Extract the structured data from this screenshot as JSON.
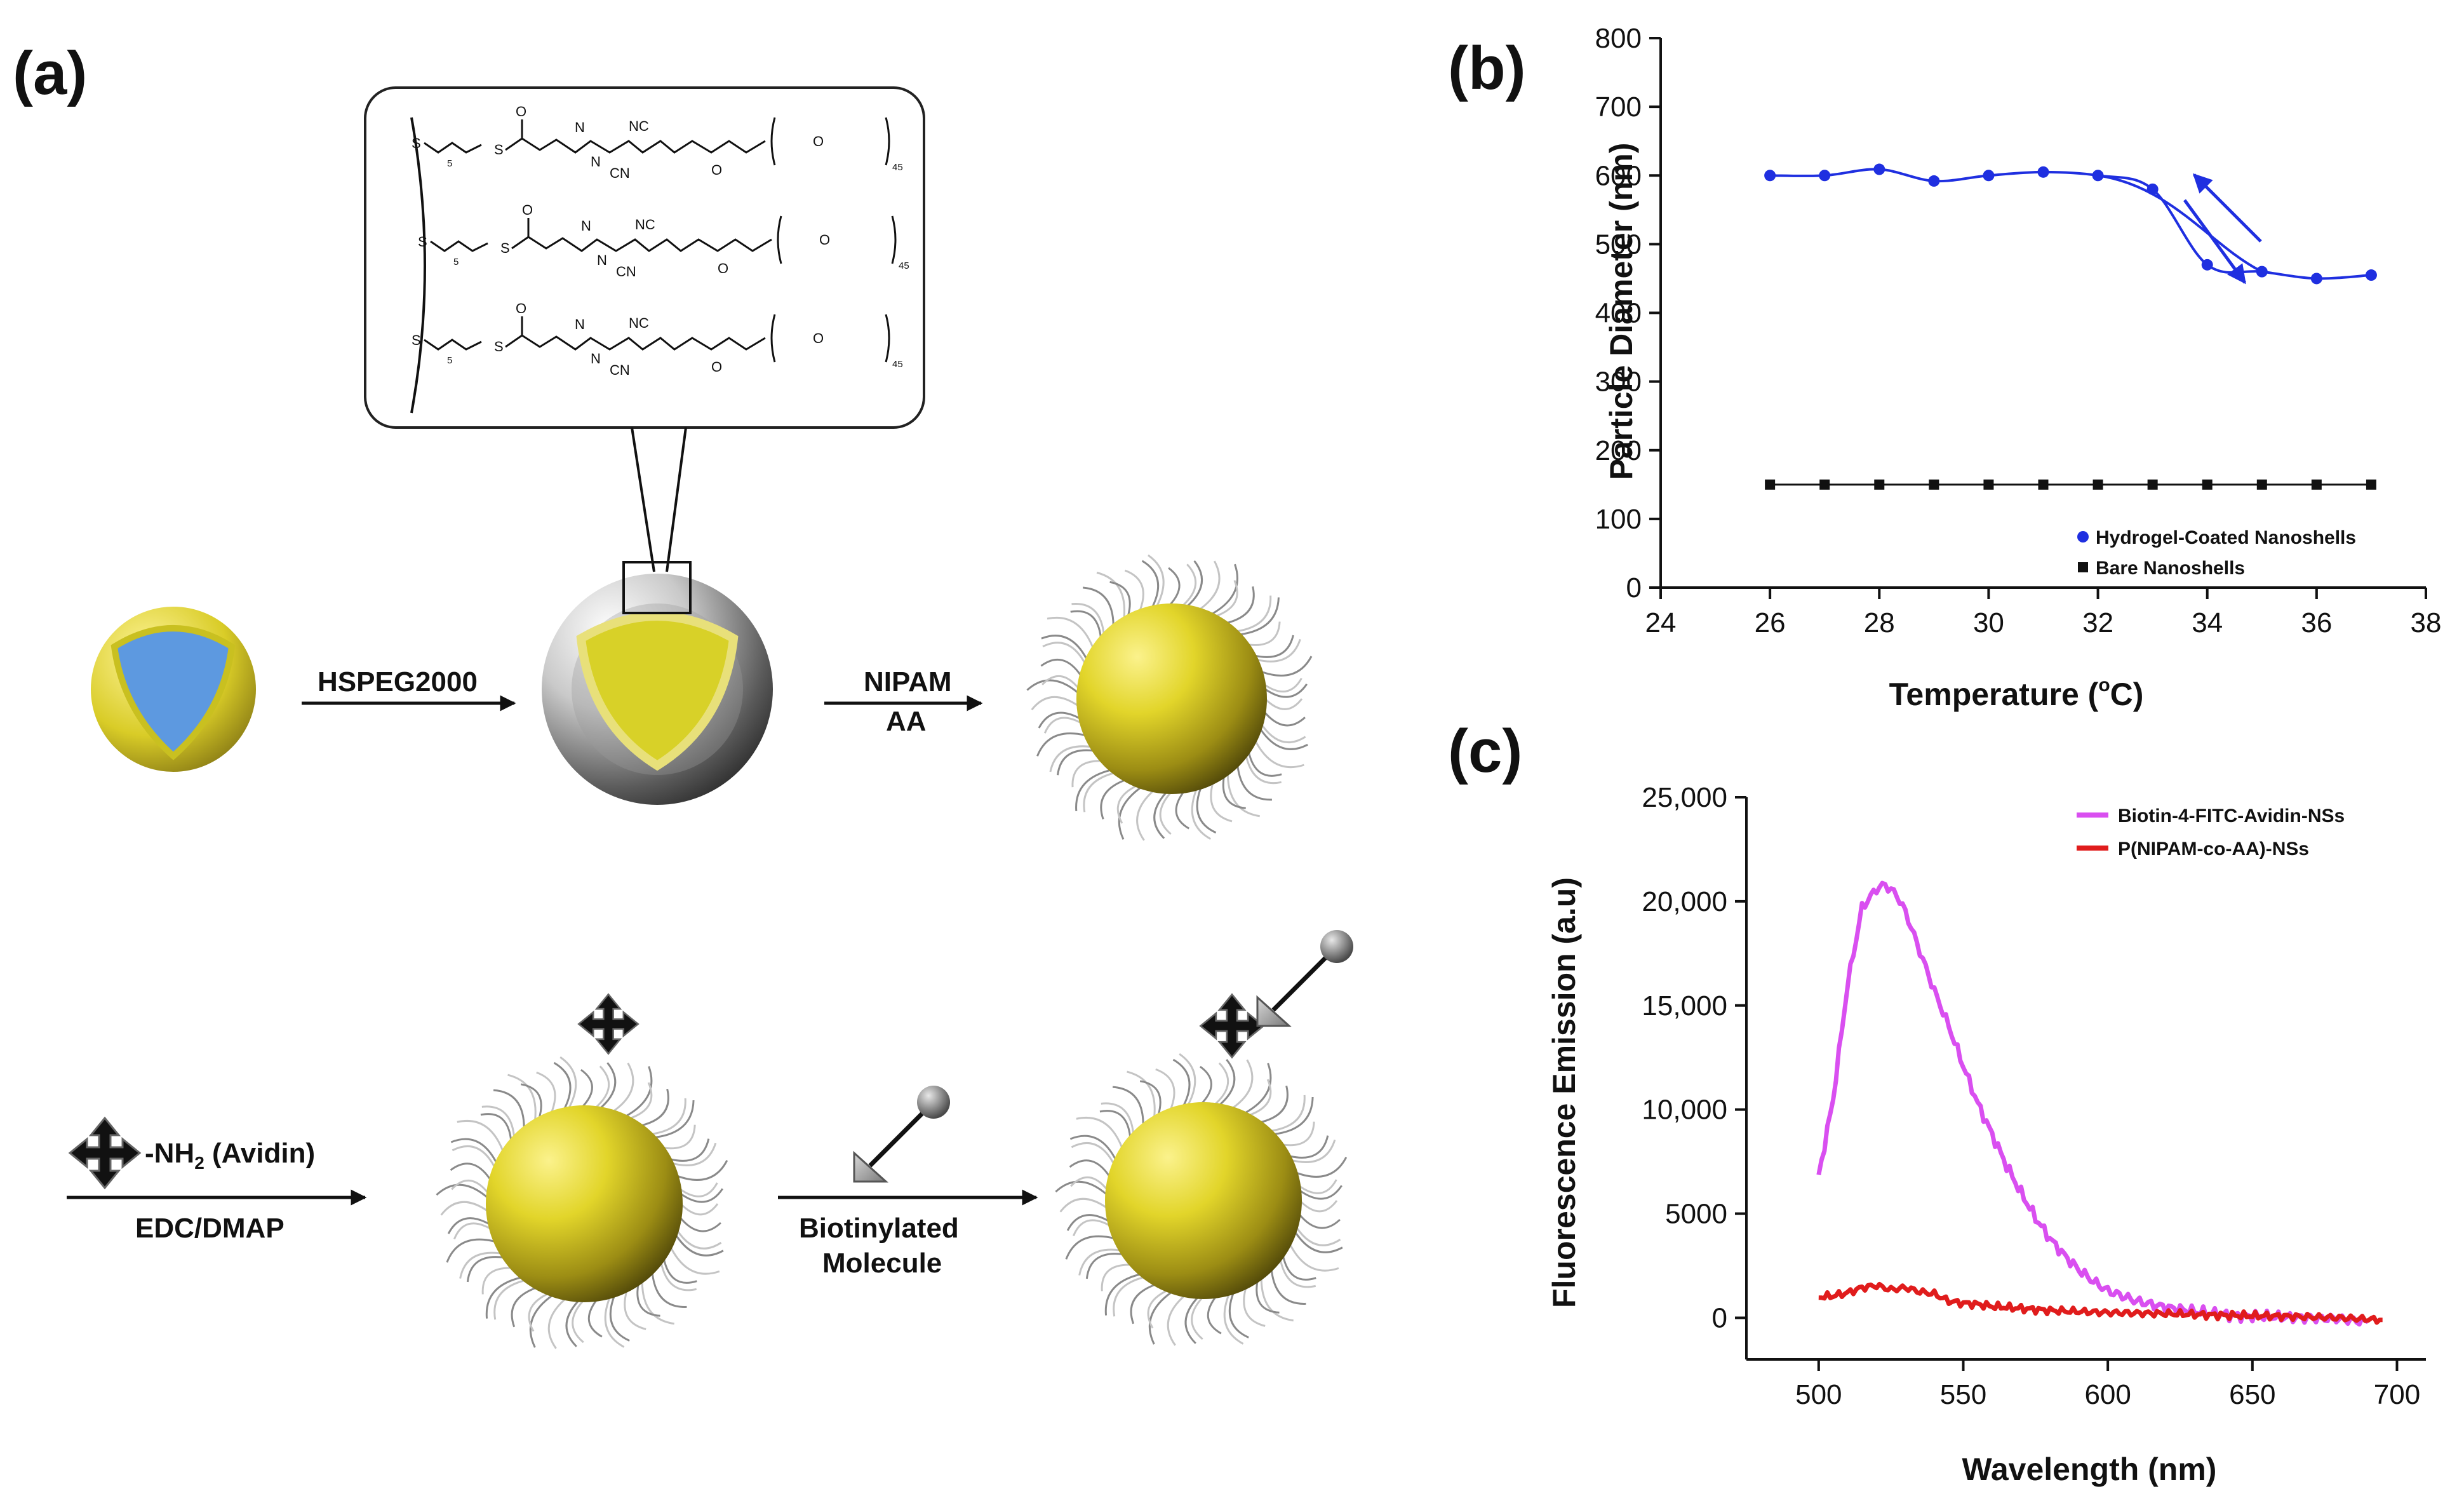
{
  "figure": {
    "panel_a": {
      "label": "(a)",
      "chem": {
        "s": "S",
        "sub5": "5",
        "o": "O",
        "nc": "NC",
        "cn": "CN",
        "n": "N",
        "sub45": "45"
      },
      "steps": {
        "hspeg": "HSPEG2000",
        "nipam": "NIPAM",
        "aa": "AA",
        "nh2": "-NH",
        "nh2_sub": "2",
        "avidin": " (Avidin)",
        "edc": "EDC/DMAP",
        "biotin_1": "Biotinylated",
        "biotin_2": "Molecule"
      }
    }
  },
  "chart_data": [
    {
      "panel": "(b)",
      "type": "line",
      "xlabel_main": "Temperature (",
      "xlabel_degree": "o",
      "xlabel_unit": "C)",
      "ylabel": "Particle Diameter (nm)",
      "xlim": [
        24,
        38
      ],
      "ylim": [
        0,
        800
      ],
      "xticks": [
        24,
        26,
        28,
        30,
        32,
        34,
        36,
        38
      ],
      "yticks": [
        0,
        100,
        200,
        300,
        400,
        500,
        600,
        700,
        800
      ],
      "xtick_labels": [
        "24",
        "26",
        "28",
        "30",
        "32",
        "34",
        "36",
        "38"
      ],
      "ytick_labels": [
        "0",
        "100",
        "200",
        "300",
        "400",
        "500",
        "600",
        "700",
        "800"
      ],
      "legend_position": "bottom-right",
      "series": [
        {
          "name": "Hydrogel-Coated Nanoshells",
          "color": "#1f2fe0",
          "marker": "circle",
          "x": [
            26,
            27,
            28,
            29,
            30,
            31,
            32,
            33,
            34,
            35,
            36,
            37
          ],
          "y": [
            600,
            600,
            609,
            592,
            600,
            605,
            600,
            580,
            470,
            460,
            450,
            455
          ]
        },
        {
          "name": "Bare Nanoshells",
          "color": "#111111",
          "marker": "square",
          "x": [
            26,
            27,
            28,
            29,
            30,
            31,
            32,
            33,
            34,
            35,
            36,
            37
          ],
          "y": [
            150,
            150,
            150,
            150,
            150,
            150,
            150,
            150,
            150,
            150,
            150,
            150
          ]
        }
      ]
    },
    {
      "panel": "(c)",
      "type": "line",
      "xlabel": "Wavelength (nm)",
      "ylabel": "Fluorescence Emission (a.u)",
      "xlim": [
        475,
        710
      ],
      "ylim": [
        -2000,
        25000
      ],
      "xticks": [
        500,
        550,
        600,
        650,
        700
      ],
      "yticks": [
        0,
        5000,
        10000,
        15000,
        20000,
        25000
      ],
      "xtick_labels": [
        "500",
        "550",
        "600",
        "650",
        "700"
      ],
      "ytick_labels": [
        "0",
        "5000",
        "10,000",
        "15,000",
        "20,000",
        "25,000"
      ],
      "legend_position": "top-right",
      "series": [
        {
          "name": "Biotin-4-FITC-Avidin-NSs",
          "color": "#d94ff0",
          "x": [
            500,
            505,
            510,
            515,
            520,
            523,
            527,
            530,
            535,
            540,
            545,
            550,
            555,
            560,
            565,
            570,
            575,
            580,
            585,
            590,
            595,
            600,
            610,
            620,
            630,
            640,
            650,
            660,
            670,
            680,
            690
          ],
          "y": [
            6800,
            10500,
            16000,
            19700,
            20600,
            20800,
            20300,
            19500,
            17600,
            15700,
            14000,
            12100,
            10300,
            8800,
            7300,
            6000,
            4800,
            3800,
            3000,
            2300,
            1750,
            1300,
            800,
            500,
            300,
            150,
            80,
            30,
            0,
            -50,
            -200
          ]
        },
        {
          "name": "P(NIPAM-co-AA)-NSs",
          "color": "#e01c1c",
          "x": [
            500,
            505,
            510,
            515,
            520,
            525,
            530,
            535,
            540,
            545,
            550,
            555,
            560,
            570,
            580,
            590,
            600,
            620,
            640,
            660,
            680,
            695
          ],
          "y": [
            1000,
            1050,
            1200,
            1450,
            1550,
            1350,
            1450,
            1250,
            1150,
            800,
            700,
            650,
            550,
            450,
            350,
            300,
            250,
            200,
            120,
            80,
            0,
            -100
          ]
        }
      ]
    }
  ]
}
